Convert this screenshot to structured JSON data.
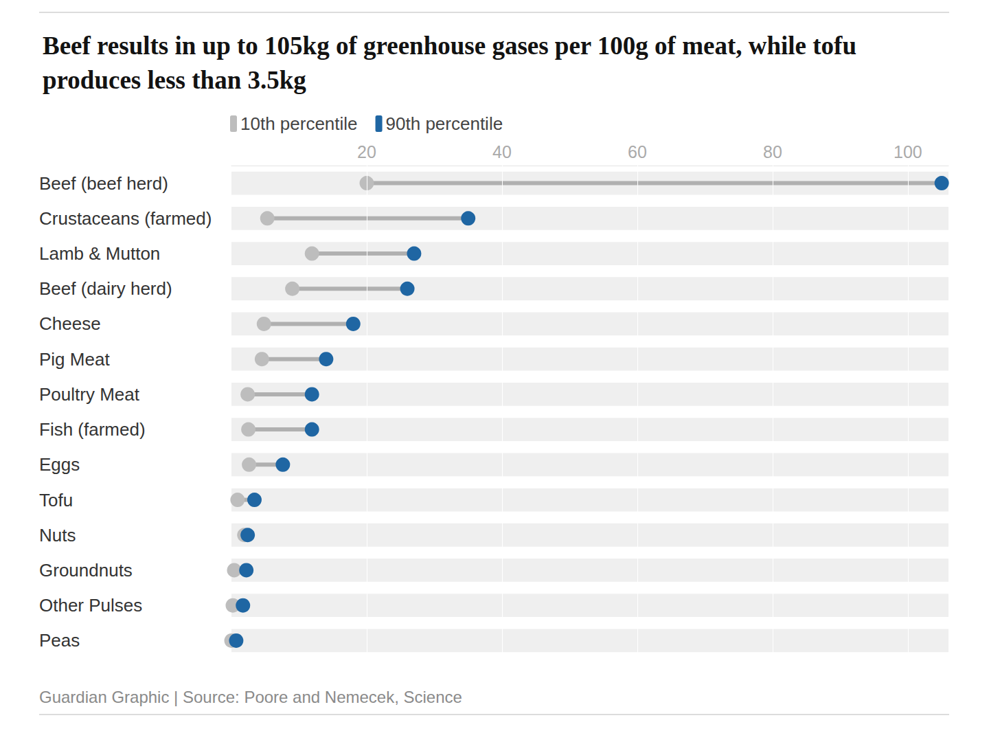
{
  "chart_data": {
    "type": "dumbbell",
    "title": "Beef results in up to 105kg of greenhouse gases per 100g of meat, while tofu produces less than 3.5kg",
    "source": "Guardian Graphic | Source: Poore and Nemecek, Science",
    "orientation": "horizontal",
    "categories": [
      "Beef (beef herd)",
      "Crustaceans (farmed)",
      "Lamb & Mutton",
      "Beef (dairy herd)",
      "Cheese",
      "Pig Meat",
      "Poultry Meat",
      "Fish (farmed)",
      "Eggs",
      "Tofu",
      "Nuts",
      "Groundnuts",
      "Other Pulses",
      "Peas"
    ],
    "series": [
      {
        "name": "10th percentile",
        "color": "#bdbdbd",
        "values": [
          20,
          5.3,
          11.9,
          9,
          4.8,
          4.5,
          2.4,
          2.5,
          2.6,
          0.9,
          1.9,
          0.4,
          0.2,
          0
        ]
      },
      {
        "name": "90th percentile",
        "color": "#1f66a3",
        "values": [
          105,
          35,
          27,
          26,
          18,
          14,
          11.9,
          11.9,
          7.6,
          3.4,
          2.4,
          2.2,
          1.7,
          0.7
        ]
      }
    ],
    "xlim": [
      0,
      106
    ],
    "xticks": [
      20,
      40,
      60,
      80,
      100
    ],
    "grid": true,
    "legend": "top-left"
  }
}
